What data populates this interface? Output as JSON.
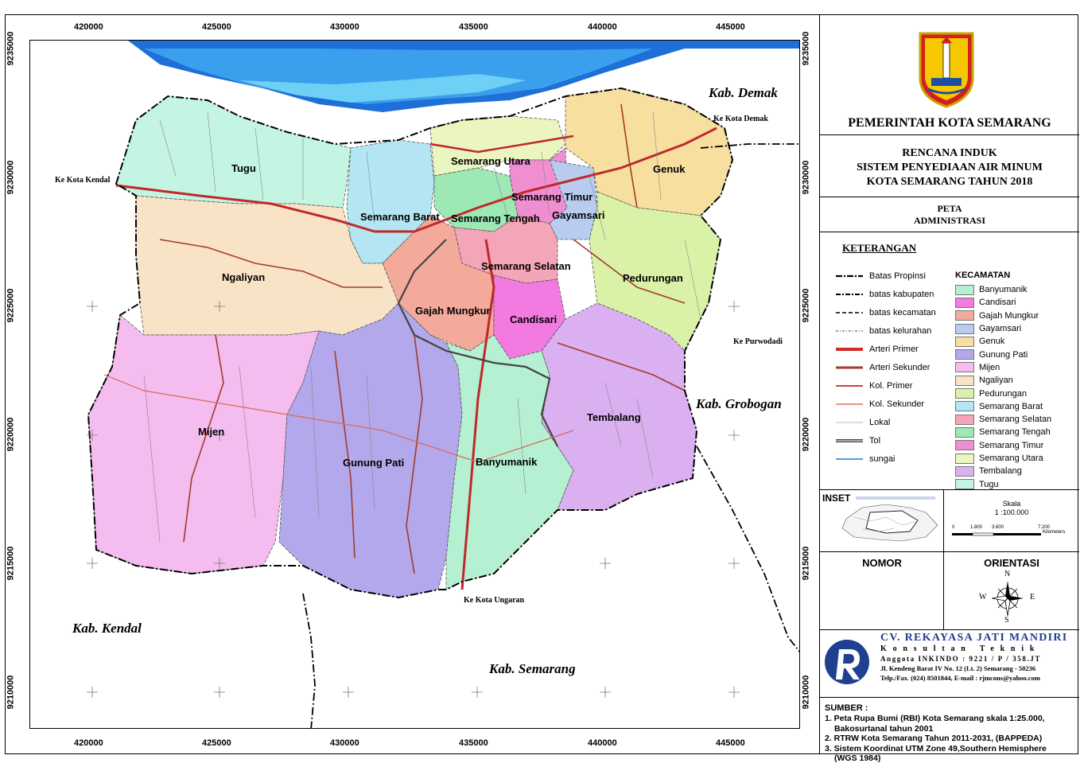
{
  "map": {
    "x_ticks": [
      "420000",
      "425000",
      "430000",
      "435000",
      "440000",
      "445000"
    ],
    "y_ticks": [
      "9235000",
      "9230000",
      "9225000",
      "9220000",
      "9215000",
      "9210000"
    ],
    "districts": [
      "Tugu",
      "Semarang Utara",
      "Genuk",
      "Semarang Barat",
      "Semarang Timur",
      "Semarang Tengah",
      "Gayamsari",
      "Ngaliyan",
      "Semarang Selatan",
      "Pedurungan",
      "Gajah Mungkur",
      "Candisari",
      "Mijen",
      "Tembalang",
      "Gunung Pati",
      "Banyumanik"
    ],
    "neighbors": {
      "demak": "Kab. Demak",
      "grobogan": "Kab. Grobogan",
      "kendal": "Kab. Kendal",
      "semarang": "Kab. Semarang"
    },
    "directions": {
      "ke_kendal": "Ke Kota Kendal",
      "ke_demak": "Ke Kota Demak",
      "ke_purwodadi": "Ke Purwodadi",
      "ke_ungaran": "Ke Kota Ungaran"
    }
  },
  "panel": {
    "government": "PEMERINTAH KOTA SEMARANG",
    "title_lines": [
      "RENCANA INDUK",
      "SISTEM PENYEDIAAN AIR MINUM",
      "KOTA SEMARANG TAHUN 2018"
    ],
    "map_type_lines": [
      "PETA",
      "ADMINISTRASI"
    ],
    "legend_heading": "KETERANGAN",
    "legend_items": [
      {
        "label": "Batas Propinsi",
        "style": "propinsi"
      },
      {
        "label": "batas kabupaten",
        "style": "kabupaten"
      },
      {
        "label": "batas kecamatan",
        "style": "kecamatan"
      },
      {
        "label": "batas kelurahan",
        "style": "kelurahan"
      },
      {
        "label": "Arteri Primer",
        "style": "arteri-primer"
      },
      {
        "label": "Arteri Sekunder",
        "style": "arteri-sekunder"
      },
      {
        "label": "Kol. Primer",
        "style": "kol-primer"
      },
      {
        "label": "Kol. Sekunder",
        "style": "kol-sekunder"
      },
      {
        "label": "Lokal",
        "style": "lokal"
      },
      {
        "label": "Tol",
        "style": "tol"
      },
      {
        "label": "sungai",
        "style": "sungai"
      }
    ],
    "kecamatan_heading": "KECAMATAN",
    "kecamatan": [
      {
        "name": "Banyumanik",
        "color": "#b6f0d2"
      },
      {
        "name": "Candisari",
        "color": "#f27ae0"
      },
      {
        "name": "Gajah Mungkur",
        "color": "#f4aa9a"
      },
      {
        "name": "Gayamsari",
        "color": "#b8ccf0"
      },
      {
        "name": "Genuk",
        "color": "#f7dfa0"
      },
      {
        "name": "Gunung Pati",
        "color": "#b3a8ec"
      },
      {
        "name": "Mijen",
        "color": "#f5bcef"
      },
      {
        "name": "Ngaliyan",
        "color": "#f8e3c6"
      },
      {
        "name": "Pedurungan",
        "color": "#d9f2a8"
      },
      {
        "name": "Semarang Barat",
        "color": "#b3e6f2"
      },
      {
        "name": "Semarang Selatan",
        "color": "#f4a6b8"
      },
      {
        "name": "Semarang Tengah",
        "color": "#9de8b4"
      },
      {
        "name": "Semarang Timur",
        "color": "#f08ed2"
      },
      {
        "name": "Semarang Utara",
        "color": "#eaf5c0"
      },
      {
        "name": "Tembalang",
        "color": "#dab0f0"
      },
      {
        "name": "Tugu",
        "color": "#c4f4e2"
      }
    ],
    "inset_label": "INSET",
    "scale_label": "Skala",
    "scale_value": "1 :100.000",
    "scale_ticks": [
      "0",
      "1.800",
      "3.600",
      "7.200"
    ],
    "scale_unit": "Kilometers",
    "nomor_label": "NOMOR",
    "orientasi_label": "ORIENTASI",
    "compass": {
      "n": "N",
      "s": "S",
      "e": "E",
      "w": "W"
    },
    "company": {
      "name": "CV. REKAYASA JATI MANDIRI",
      "role": "Konsultan Teknik",
      "member": "Anggota INKINDO : 9221 / P / 358.JT",
      "address": "Jl. Kendeng Barat IV No. 12 (Lt. 2) Semarang - 50236",
      "contact": "Telp./Fax. (024) 8501844, E-mail : rjmcons@yahoo.com"
    },
    "source_heading": "SUMBER :",
    "sources": [
      "1. Peta Rupa Bumi (RBI) Kota Semarang skala 1:25.000,",
      "Bakosurtanal tahun 2001",
      "2. RTRW Kota Semarang Tahun 2011-2031, (BAPPEDA)",
      "3. Sistem Koordinat UTM Zone 49,Southern Hemisphere",
      "(WGS 1984)"
    ]
  },
  "colors": {
    "sea_deep": "#1e6fd8",
    "sea_mid": "#3aa0ee",
    "sea_light": "#6ed0f5",
    "road_primary": "#c0282a",
    "road_secondary": "#a33a2a",
    "boundary": "#000000"
  }
}
